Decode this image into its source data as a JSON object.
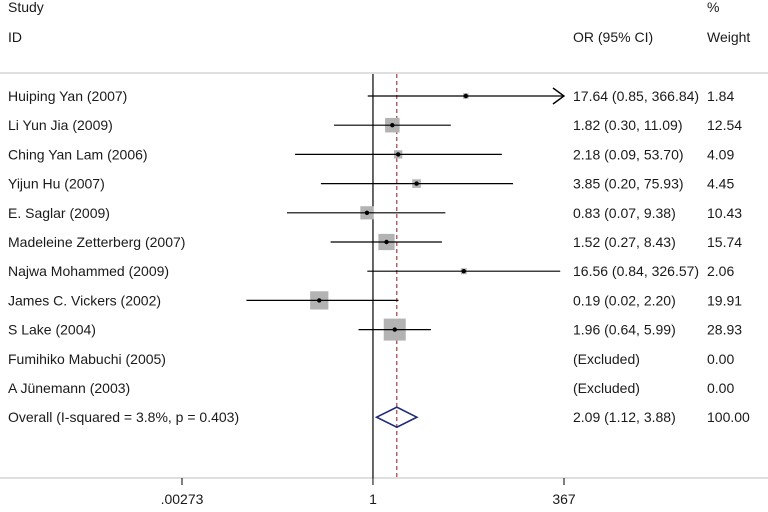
{
  "chart_data": {
    "type": "forest",
    "header": {
      "study_line1": "Study",
      "study_line2": "ID",
      "or_label": "OR (95% CI)",
      "weight_line1": "%",
      "weight_line2": "Weight"
    },
    "scale": "log",
    "null_value": 1,
    "pooled_or": 2.09,
    "xlim": [
      0.00273,
      367
    ],
    "x_ticks": [
      {
        "value": 0.00273,
        "label": ".00273"
      },
      {
        "value": 1,
        "label": "1"
      },
      {
        "value": 367,
        "label": "367"
      }
    ],
    "studies": [
      {
        "name": "Huiping Yan (2007)",
        "or": 17.64,
        "lower": 0.85,
        "upper": 366.84,
        "weight": 1.84,
        "or_text": "17.64 (0.85, 366.84)",
        "weight_text": "1.84",
        "arrow_right": true
      },
      {
        "name": "Li Yun Jia (2009)",
        "or": 1.82,
        "lower": 0.3,
        "upper": 11.09,
        "weight": 12.54,
        "or_text": "1.82 (0.30, 11.09)",
        "weight_text": "12.54"
      },
      {
        "name": "Ching Yan Lam (2006)",
        "or": 2.18,
        "lower": 0.09,
        "upper": 53.7,
        "weight": 4.09,
        "or_text": "2.18 (0.09, 53.70)",
        "weight_text": "4.09"
      },
      {
        "name": "Yijun Hu (2007)",
        "or": 3.85,
        "lower": 0.2,
        "upper": 75.93,
        "weight": 4.45,
        "or_text": "3.85 (0.20, 75.93)",
        "weight_text": "4.45"
      },
      {
        "name": "E. Saglar (2009)",
        "or": 0.83,
        "lower": 0.07,
        "upper": 9.38,
        "weight": 10.43,
        "or_text": "0.83 (0.07, 9.38)",
        "weight_text": "10.43"
      },
      {
        "name": "Madeleine Zetterberg (2007)",
        "or": 1.52,
        "lower": 0.27,
        "upper": 8.43,
        "weight": 15.74,
        "or_text": "1.52 (0.27, 8.43)",
        "weight_text": "15.74"
      },
      {
        "name": "Najwa Mohammed (2009)",
        "or": 16.56,
        "lower": 0.84,
        "upper": 326.57,
        "weight": 2.06,
        "or_text": "16.56 (0.84, 326.57)",
        "weight_text": "2.06"
      },
      {
        "name": "James C. Vickers (2002)",
        "or": 0.19,
        "lower": 0.02,
        "upper": 2.2,
        "weight": 19.91,
        "or_text": "0.19 (0.02, 2.20)",
        "weight_text": "19.91"
      },
      {
        "name": "S Lake (2004)",
        "or": 1.96,
        "lower": 0.64,
        "upper": 5.99,
        "weight": 28.93,
        "or_text": "1.96 (0.64, 5.99)",
        "weight_text": "28.93"
      },
      {
        "name": "Fumihiko Mabuchi (2005)",
        "or": null,
        "lower": null,
        "upper": null,
        "weight": 0.0,
        "or_text": "(Excluded)",
        "weight_text": "0.00"
      },
      {
        "name": "A Jünemann (2003)",
        "or": null,
        "lower": null,
        "upper": null,
        "weight": 0.0,
        "or_text": "(Excluded)",
        "weight_text": "0.00"
      }
    ],
    "overall": {
      "name": "Overall  (I-squared = 3.8%, p = 0.403)",
      "or": 2.09,
      "lower": 1.12,
      "upper": 3.88,
      "weight": 100.0,
      "or_text": "2.09 (1.12, 3.88)",
      "weight_text": "100.00"
    },
    "colors": {
      "text": "#1a1a1a",
      "ci_line": "#000000",
      "box": "#b3b3b3",
      "pooled_line": "#8b1a1a",
      "diamond": "#1f2a7a",
      "rule": "#bfbfbf"
    }
  }
}
